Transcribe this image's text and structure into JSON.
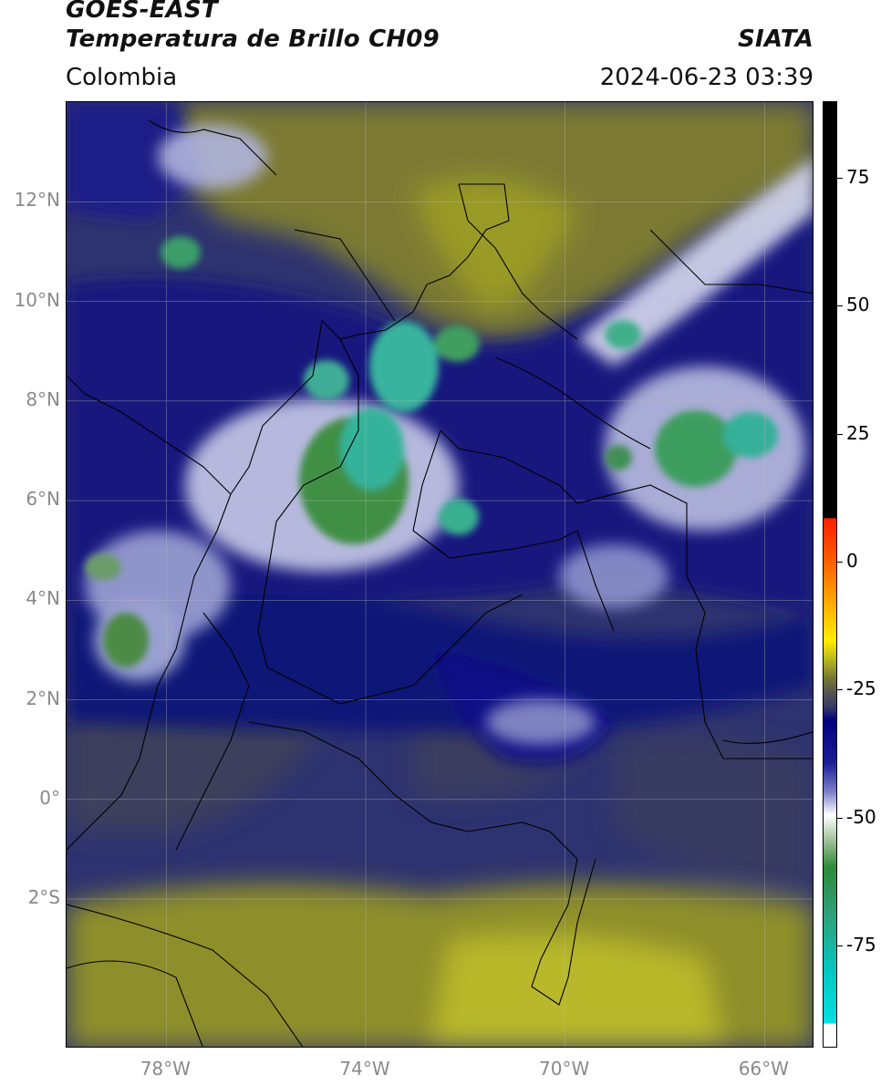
{
  "header": {
    "line1": "GOES-EAST",
    "line2": "Temperatura de Brillo CH09",
    "org": "SIATA",
    "region": "Colombia",
    "datetime": "2024-06-23 03:39"
  },
  "map": {
    "lat_labels": [
      {
        "text": "12°N",
        "lat": 12
      },
      {
        "text": "10°N",
        "lat": 10
      },
      {
        "text": "8°N",
        "lat": 8
      },
      {
        "text": "6°N",
        "lat": 6
      },
      {
        "text": "4°N",
        "lat": 4
      },
      {
        "text": "2°N",
        "lat": 2
      },
      {
        "text": "0°",
        "lat": 0
      },
      {
        "text": "2°S",
        "lat": -2
      }
    ],
    "lon_labels": [
      {
        "text": "78°W",
        "lon": -78
      },
      {
        "text": "74°W",
        "lon": -74
      },
      {
        "text": "70°W",
        "lon": -70
      },
      {
        "text": "66°W",
        "lon": -66
      }
    ],
    "extent": {
      "lon_min": -80,
      "lon_max": -65,
      "lat_min": -5,
      "lat_max": 14
    }
  },
  "colorbar": {
    "vmin": -95,
    "vmax": 90,
    "ticks": [
      {
        "text": "75",
        "value": 75
      },
      {
        "text": "50",
        "value": 50
      },
      {
        "text": "25",
        "value": 25
      },
      {
        "text": "0",
        "value": 0
      },
      {
        "text": "-25",
        "value": -25
      },
      {
        "text": "-50",
        "value": -50
      },
      {
        "text": "-75",
        "value": -75
      }
    ],
    "colors": {
      "warm": "#000000",
      "red": "#ff2000",
      "orange": "#ff9900",
      "yellow": "#ffee00",
      "olive": "#b8b820",
      "gray": "#555555",
      "navy": "#000080",
      "white": "#ffffff",
      "green": "#2e8b3a",
      "cyan": "#00e0e0"
    }
  }
}
